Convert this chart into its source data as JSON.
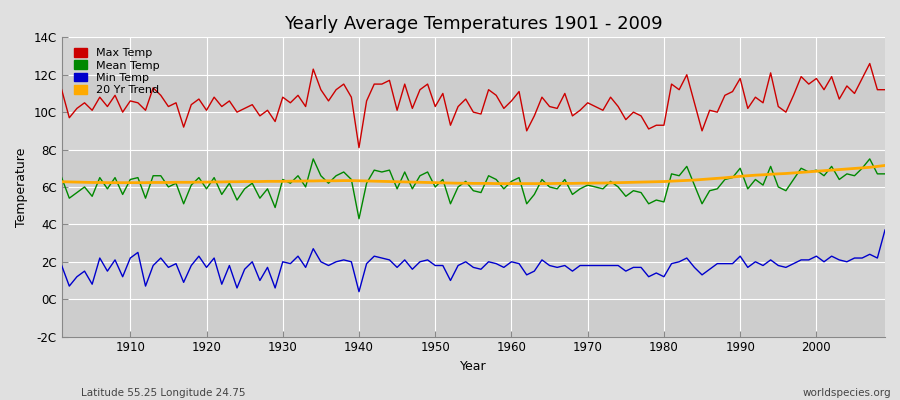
{
  "title": "Yearly Average Temperatures 1901 - 2009",
  "xlabel": "Year",
  "ylabel": "Temperature",
  "subtitle_left": "Latitude 55.25 Longitude 24.75",
  "subtitle_right": "worldspecies.org",
  "years": [
    1901,
    1902,
    1903,
    1904,
    1905,
    1906,
    1907,
    1908,
    1909,
    1910,
    1911,
    1912,
    1913,
    1914,
    1915,
    1916,
    1917,
    1918,
    1919,
    1920,
    1921,
    1922,
    1923,
    1924,
    1925,
    1926,
    1927,
    1928,
    1929,
    1930,
    1931,
    1932,
    1933,
    1934,
    1935,
    1936,
    1937,
    1938,
    1939,
    1940,
    1941,
    1942,
    1943,
    1944,
    1945,
    1946,
    1947,
    1948,
    1949,
    1950,
    1951,
    1952,
    1953,
    1954,
    1955,
    1956,
    1957,
    1958,
    1959,
    1960,
    1961,
    1962,
    1963,
    1964,
    1965,
    1966,
    1967,
    1968,
    1969,
    1970,
    1971,
    1972,
    1973,
    1974,
    1975,
    1976,
    1977,
    1978,
    1979,
    1980,
    1981,
    1982,
    1983,
    1984,
    1985,
    1986,
    1987,
    1988,
    1989,
    1990,
    1991,
    1992,
    1993,
    1994,
    1995,
    1996,
    1997,
    1998,
    1999,
    2000,
    2001,
    2002,
    2003,
    2004,
    2005,
    2006,
    2007,
    2008,
    2009
  ],
  "max_temp": [
    11.2,
    9.7,
    10.2,
    10.5,
    10.1,
    10.8,
    10.3,
    10.9,
    10.0,
    10.6,
    10.5,
    10.1,
    11.3,
    10.9,
    10.3,
    10.5,
    9.2,
    10.4,
    10.7,
    10.1,
    10.8,
    10.3,
    10.6,
    10.0,
    10.2,
    10.4,
    9.8,
    10.1,
    9.5,
    10.8,
    10.5,
    10.9,
    10.3,
    12.3,
    11.2,
    10.6,
    11.2,
    11.5,
    10.8,
    8.1,
    10.6,
    11.5,
    11.5,
    11.7,
    10.1,
    11.5,
    10.2,
    11.2,
    11.5,
    10.3,
    11.0,
    9.3,
    10.3,
    10.7,
    10.0,
    9.9,
    11.2,
    10.9,
    10.2,
    10.6,
    11.1,
    9.0,
    9.8,
    10.8,
    10.3,
    10.2,
    11.0,
    9.8,
    10.1,
    10.5,
    10.3,
    10.1,
    10.8,
    10.3,
    9.6,
    10.0,
    9.8,
    9.1,
    9.3,
    9.3,
    11.5,
    11.2,
    12.0,
    10.5,
    9.0,
    10.1,
    10.0,
    10.9,
    11.1,
    11.8,
    10.2,
    10.8,
    10.5,
    12.1,
    10.3,
    10.0,
    10.9,
    11.9,
    11.5,
    11.8,
    11.2,
    11.9,
    10.7,
    11.4,
    11.0,
    11.8,
    12.6,
    11.2,
    11.2
  ],
  "mean_temp": [
    6.5,
    5.4,
    5.7,
    6.0,
    5.5,
    6.5,
    5.9,
    6.5,
    5.6,
    6.4,
    6.5,
    5.4,
    6.6,
    6.6,
    6.0,
    6.2,
    5.1,
    6.1,
    6.5,
    5.9,
    6.5,
    5.6,
    6.2,
    5.3,
    5.9,
    6.2,
    5.4,
    5.9,
    4.9,
    6.4,
    6.2,
    6.6,
    6.0,
    7.5,
    6.6,
    6.2,
    6.6,
    6.8,
    6.4,
    4.3,
    6.2,
    6.9,
    6.8,
    6.9,
    5.9,
    6.8,
    5.9,
    6.6,
    6.8,
    6.0,
    6.4,
    5.1,
    6.0,
    6.3,
    5.8,
    5.7,
    6.6,
    6.4,
    5.9,
    6.3,
    6.5,
    5.1,
    5.6,
    6.4,
    6.0,
    5.9,
    6.4,
    5.6,
    5.9,
    6.1,
    6.0,
    5.9,
    6.3,
    6.0,
    5.5,
    5.8,
    5.7,
    5.1,
    5.3,
    5.2,
    6.7,
    6.6,
    7.1,
    6.1,
    5.1,
    5.8,
    5.9,
    6.4,
    6.5,
    7.0,
    5.9,
    6.4,
    6.1,
    7.1,
    6.0,
    5.8,
    6.4,
    7.0,
    6.8,
    6.9,
    6.6,
    7.1,
    6.4,
    6.7,
    6.6,
    7.0,
    7.5,
    6.7,
    6.7
  ],
  "min_temp": [
    1.8,
    0.7,
    1.2,
    1.5,
    0.8,
    2.2,
    1.5,
    2.1,
    1.2,
    2.2,
    2.5,
    0.7,
    1.8,
    2.2,
    1.7,
    1.9,
    0.9,
    1.8,
    2.3,
    1.7,
    2.2,
    0.8,
    1.8,
    0.6,
    1.6,
    2.0,
    1.0,
    1.7,
    0.6,
    2.0,
    1.9,
    2.3,
    1.7,
    2.7,
    2.0,
    1.8,
    2.0,
    2.1,
    2.0,
    0.4,
    1.9,
    2.3,
    2.2,
    2.1,
    1.7,
    2.1,
    1.6,
    2.0,
    2.1,
    1.8,
    1.8,
    1.0,
    1.8,
    2.0,
    1.7,
    1.6,
    2.0,
    1.9,
    1.7,
    2.0,
    1.9,
    1.3,
    1.5,
    2.1,
    1.8,
    1.7,
    1.8,
    1.5,
    1.8,
    1.8,
    1.8,
    1.8,
    1.8,
    1.8,
    1.5,
    1.7,
    1.7,
    1.2,
    1.4,
    1.2,
    1.9,
    2.0,
    2.2,
    1.7,
    1.3,
    1.6,
    1.9,
    1.9,
    1.9,
    2.3,
    1.7,
    2.0,
    1.8,
    2.1,
    1.8,
    1.7,
    1.9,
    2.1,
    2.1,
    2.3,
    2.0,
    2.3,
    2.1,
    2.0,
    2.2,
    2.2,
    2.4,
    2.2,
    3.7
  ],
  "trend": [
    6.28,
    6.27,
    6.26,
    6.25,
    6.24,
    6.24,
    6.23,
    6.23,
    6.23,
    6.23,
    6.23,
    6.23,
    6.24,
    6.24,
    6.24,
    6.25,
    6.25,
    6.25,
    6.26,
    6.26,
    6.27,
    6.27,
    6.28,
    6.28,
    6.29,
    6.29,
    6.29,
    6.3,
    6.3,
    6.3,
    6.31,
    6.31,
    6.32,
    6.32,
    6.33,
    6.33,
    6.33,
    6.34,
    6.34,
    6.33,
    6.32,
    6.31,
    6.3,
    6.29,
    6.28,
    6.27,
    6.26,
    6.25,
    6.24,
    6.23,
    6.22,
    6.21,
    6.2,
    6.2,
    6.19,
    6.19,
    6.19,
    6.18,
    6.18,
    6.18,
    6.18,
    6.18,
    6.18,
    6.18,
    6.18,
    6.19,
    6.19,
    6.19,
    6.2,
    6.2,
    6.21,
    6.21,
    6.22,
    6.23,
    6.24,
    6.25,
    6.26,
    6.27,
    6.28,
    6.29,
    6.31,
    6.33,
    6.35,
    6.37,
    6.4,
    6.43,
    6.46,
    6.49,
    6.53,
    6.57,
    6.6,
    6.63,
    6.65,
    6.68,
    6.7,
    6.72,
    6.75,
    6.78,
    6.81,
    6.84,
    6.87,
    6.9,
    6.93,
    6.96,
    6.99,
    7.02,
    7.05,
    7.1,
    7.15
  ],
  "ylim": [
    -2,
    14
  ],
  "yticks": [
    -2,
    0,
    2,
    4,
    6,
    8,
    10,
    12,
    14
  ],
  "yticklabels": [
    "-2C",
    "0C",
    "2C",
    "4C",
    "6C",
    "8C",
    "10C",
    "12C",
    "14C"
  ],
  "xlim": [
    1901,
    2009
  ],
  "xticks": [
    1910,
    1920,
    1930,
    1940,
    1950,
    1960,
    1970,
    1980,
    1990,
    2000
  ],
  "max_color": "#cc0000",
  "mean_color": "#008800",
  "min_color": "#0000cc",
  "trend_color": "#ffaa00",
  "bg_color": "#e0e0e0",
  "plot_bg_color_light": "#d0d0d0",
  "plot_bg_color_dark": "#c0c0c0",
  "grid_color": "#ffffff",
  "legend_labels": [
    "Max Temp",
    "Mean Temp",
    "Min Temp",
    "20 Yr Trend"
  ],
  "legend_colors": [
    "#cc0000",
    "#008800",
    "#0000cc",
    "#ffaa00"
  ],
  "title_fontsize": 13,
  "label_fontsize": 9,
  "tick_fontsize": 8.5
}
